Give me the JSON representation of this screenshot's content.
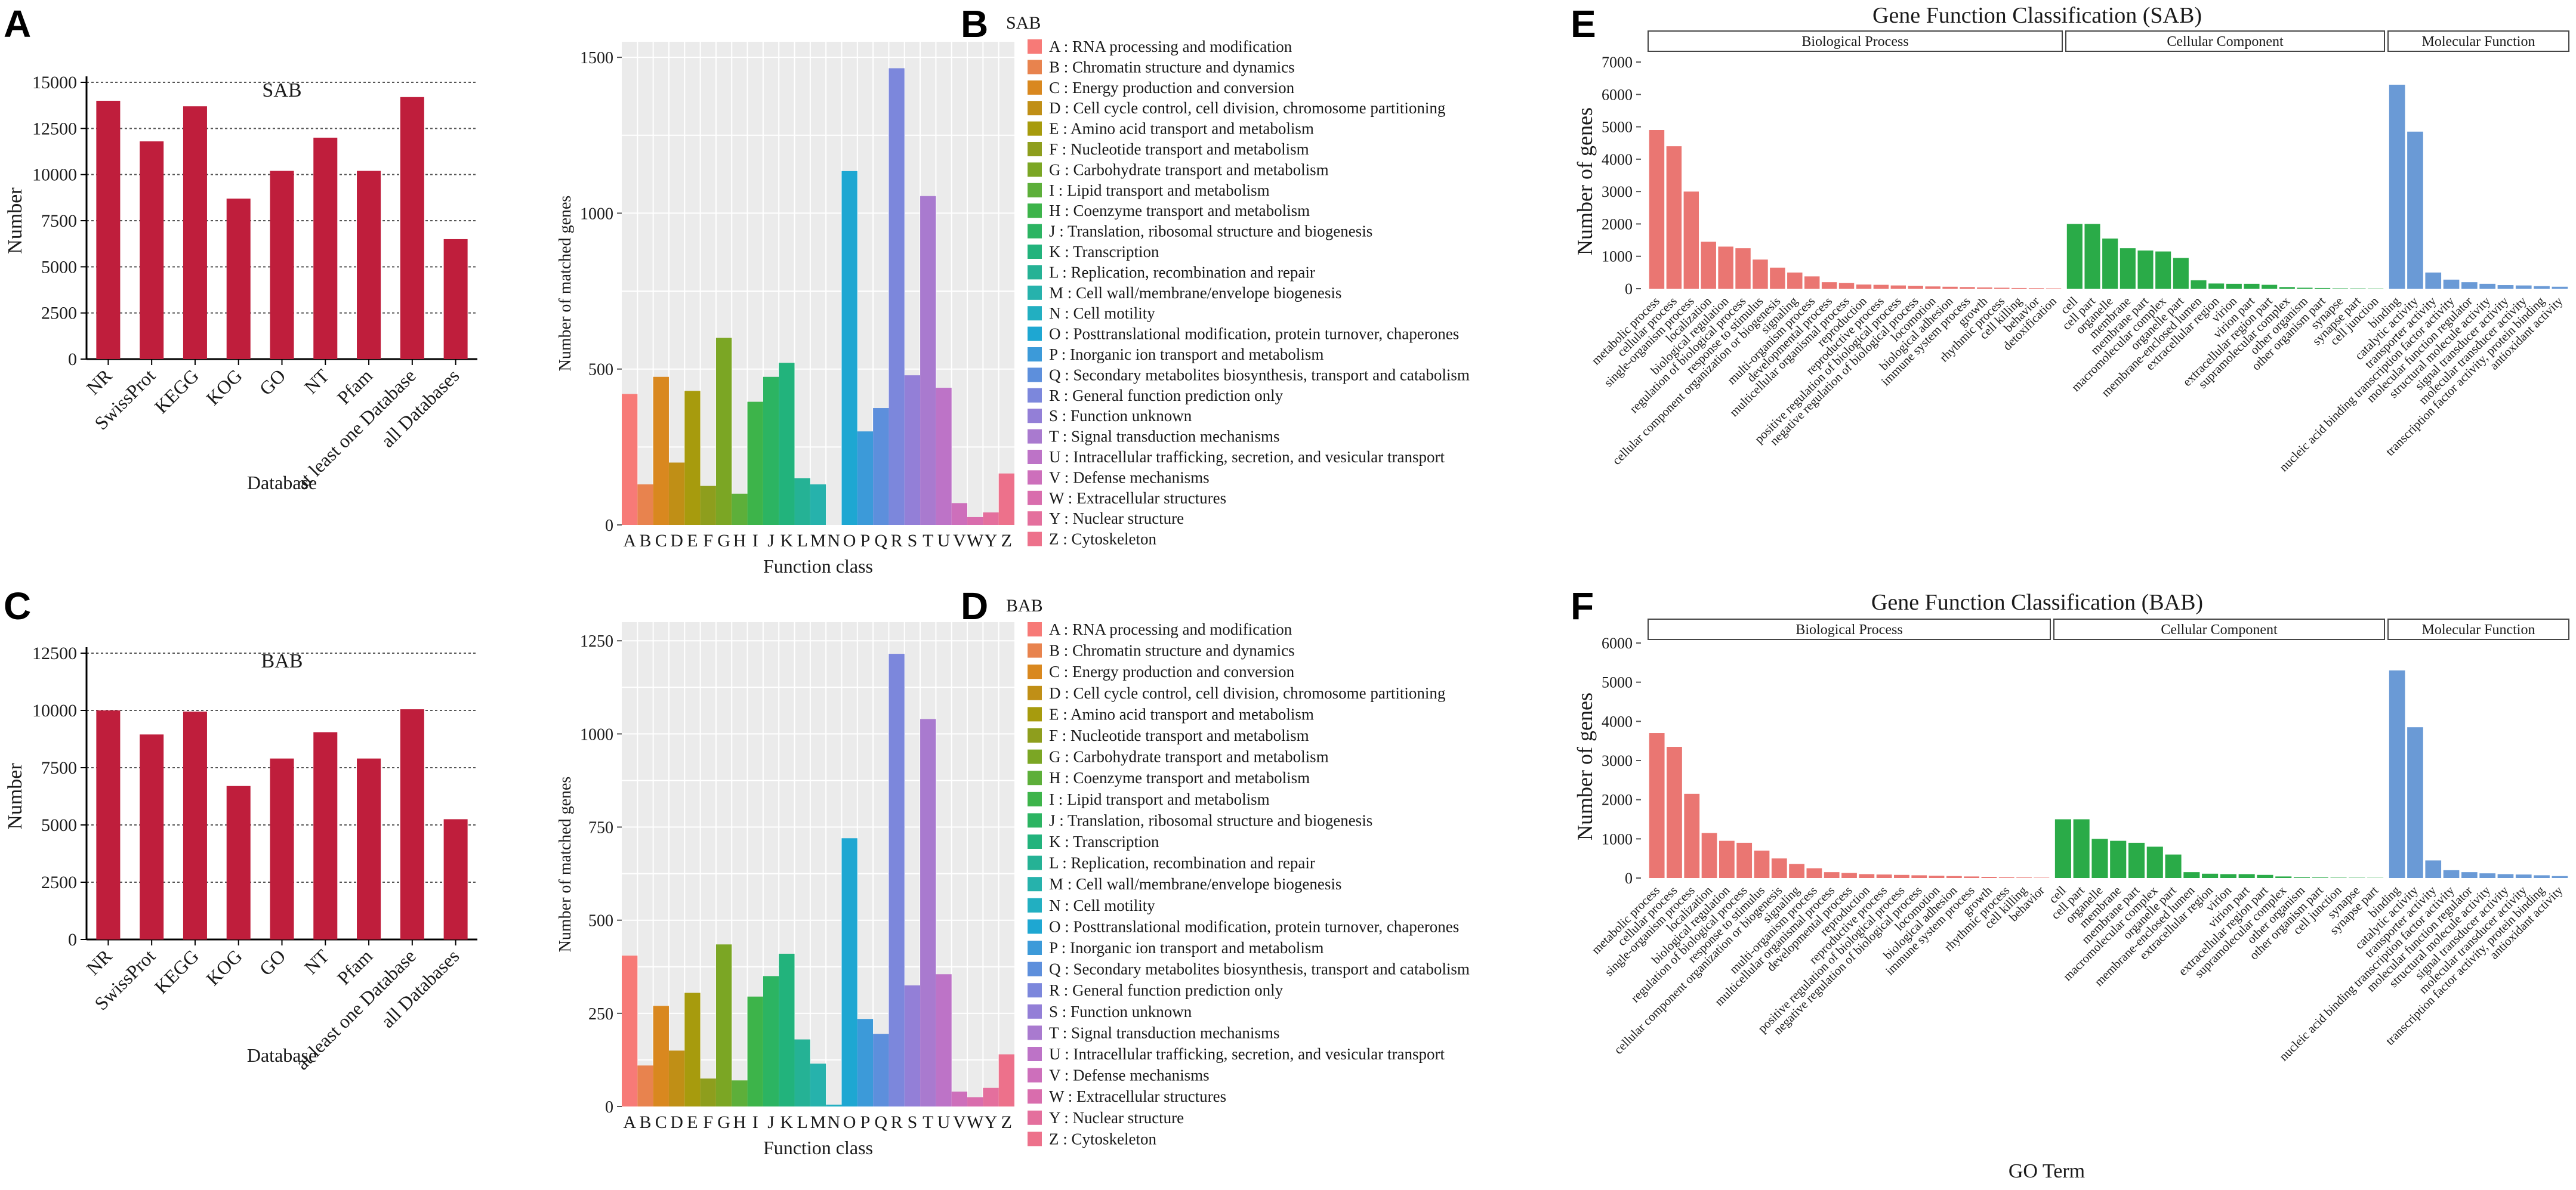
{
  "panel_letters": [
    "A",
    "B",
    "C",
    "D",
    "E",
    "F"
  ],
  "colors": {
    "db_bar": "#bf1e3c",
    "bp": "#ea7672",
    "cc": "#2aab48",
    "mf": "#6a9ad6",
    "kog_bg": "#ebebeb",
    "grid": "#ffffff"
  },
  "chart_data": [
    {
      "id": "A",
      "type": "bar",
      "title": "SAB",
      "xlabel": "Database",
      "ylabel": "Number",
      "ylim": [
        0,
        15000
      ],
      "yticks": [
        0,
        2500,
        5000,
        7500,
        10000,
        12500,
        15000
      ],
      "categories": [
        "NR",
        "SwissProt",
        "KEGG",
        "KOG",
        "GO",
        "NT",
        "Pfam",
        "at least one Database",
        "all Databases"
      ],
      "values": [
        14000,
        11800,
        13700,
        8700,
        10200,
        12000,
        10200,
        14200,
        6500
      ]
    },
    {
      "id": "C",
      "type": "bar",
      "title": "BAB",
      "xlabel": "Database",
      "ylabel": "Number",
      "ylim": [
        0,
        12500
      ],
      "yticks": [
        0,
        2500,
        5000,
        7500,
        10000,
        12500
      ],
      "categories": [
        "NR",
        "SwissProt",
        "KEGG",
        "KOG",
        "GO",
        "NT",
        "Pfam",
        "at least one Database",
        "all Databases"
      ],
      "values": [
        10000,
        8950,
        9950,
        6700,
        7900,
        9050,
        7900,
        10050,
        5250
      ]
    },
    {
      "id": "B",
      "type": "bar",
      "title": "SAB",
      "xlabel": "Function class",
      "ylabel": "Number of matched genes",
      "ylim": [
        0,
        1550
      ],
      "yticks": [
        0,
        500,
        1000,
        1500
      ],
      "categories": [
        "A",
        "B",
        "C",
        "D",
        "E",
        "F",
        "G",
        "H",
        "I",
        "J",
        "K",
        "L",
        "M",
        "N",
        "O",
        "P",
        "Q",
        "R",
        "S",
        "T",
        "U",
        "V",
        "W",
        "Y",
        "Z"
      ],
      "values": [
        420,
        130,
        475,
        200,
        430,
        125,
        600,
        100,
        395,
        475,
        520,
        150,
        130,
        0,
        1135,
        300,
        375,
        1465,
        480,
        1055,
        440,
        70,
        25,
        40,
        165
      ],
      "bar_colors": [
        "#f77a77",
        "#e8834e",
        "#d9881f",
        "#c08f16",
        "#a79b0d",
        "#8e9e1d",
        "#7ba624",
        "#5daf3a",
        "#3db44a",
        "#2cb462",
        "#22b37c",
        "#25b295",
        "#26b2ac",
        "#22afc1",
        "#1ea7d2",
        "#3c9ad9",
        "#5d8fdc",
        "#7c87dc",
        "#937fd7",
        "#a97acf",
        "#bd73c7",
        "#cd6fbb",
        "#d96dad",
        "#e46f9d",
        "#ed718b"
      ],
      "legend": [
        "A : RNA processing and modification",
        "B : Chromatin structure and dynamics",
        "C : Energy production and conversion",
        "D : Cell cycle control, cell division, chromosome partitioning",
        "E : Amino acid transport and metabolism",
        "F : Nucleotide transport and metabolism",
        "G : Carbohydrate transport and metabolism",
        "I : Lipid transport and metabolism",
        "H : Coenzyme transport and metabolism",
        "J : Translation, ribosomal structure and biogenesis",
        "K : Transcription",
        "L : Replication, recombination and repair",
        "M : Cell wall/membrane/envelope biogenesis",
        "N : Cell motility",
        "O : Posttranslational modification, protein turnover, chaperones",
        "P : Inorganic ion transport and metabolism",
        "Q : Secondary metabolites biosynthesis, transport and catabolism",
        "R : General function prediction only",
        "S : Function unknown",
        "T : Signal transduction mechanisms",
        "U : Intracellular trafficking, secretion, and vesicular transport",
        "V : Defense mechanisms",
        "W : Extracellular structures",
        "Y : Nuclear structure",
        "Z : Cytoskeleton"
      ]
    },
    {
      "id": "D",
      "type": "bar",
      "title": "BAB",
      "xlabel": "Function class",
      "ylabel": "Number of matched genes",
      "ylim": [
        0,
        1300
      ],
      "yticks": [
        0,
        250,
        500,
        750,
        1000,
        1250
      ],
      "categories": [
        "A",
        "B",
        "C",
        "D",
        "E",
        "F",
        "G",
        "H",
        "I",
        "J",
        "K",
        "L",
        "M",
        "N",
        "O",
        "P",
        "Q",
        "R",
        "S",
        "T",
        "U",
        "V",
        "W",
        "Y",
        "Z"
      ],
      "values": [
        405,
        110,
        270,
        150,
        305,
        75,
        435,
        70,
        295,
        350,
        410,
        180,
        115,
        5,
        720,
        235,
        195,
        1215,
        325,
        1040,
        355,
        40,
        25,
        50,
        140
      ],
      "bar_colors": [
        "#f77a77",
        "#e8834e",
        "#d9881f",
        "#c08f16",
        "#a79b0d",
        "#8e9e1d",
        "#7ba624",
        "#5daf3a",
        "#3db44a",
        "#2cb462",
        "#22b37c",
        "#25b295",
        "#26b2ac",
        "#22afc1",
        "#1ea7d2",
        "#3c9ad9",
        "#5d8fdc",
        "#7c87dc",
        "#937fd7",
        "#a97acf",
        "#bd73c7",
        "#cd6fbb",
        "#d96dad",
        "#e46f9d",
        "#ed718b"
      ],
      "legend": [
        "A : RNA processing and modification",
        "B : Chromatin structure and dynamics",
        "C : Energy production and conversion",
        "D : Cell cycle control, cell division, chromosome partitioning",
        "E : Amino acid transport and metabolism",
        "F : Nucleotide transport and metabolism",
        "G : Carbohydrate transport and metabolism",
        "H : Coenzyme transport and metabolism",
        "I : Lipid transport and metabolism",
        "J : Translation, ribosomal structure and biogenesis",
        "K : Transcription",
        "L : Replication, recombination and repair",
        "M : Cell wall/membrane/envelope biogenesis",
        "N : Cell motility",
        "O : Posttranslational modification, protein turnover, chaperones",
        "P : Inorganic ion transport and metabolism",
        "Q : Secondary metabolites biosynthesis, transport and catabolism",
        "R : General function prediction only",
        "S : Function unknown",
        "T : Signal transduction mechanisms",
        "U : Intracellular trafficking, secretion, and vesicular transport",
        "V : Defense mechanisms",
        "W : Extracellular structures",
        "Y : Nuclear structure",
        "Z : Cytoskeleton"
      ]
    },
    {
      "id": "E",
      "type": "bar",
      "title": "Gene Function Classification (SAB)",
      "xlabel": "",
      "ylabel": "Number of genes",
      "ylim": [
        0,
        7000
      ],
      "yticks": [
        0,
        1000,
        2000,
        3000,
        4000,
        5000,
        6000,
        7000
      ],
      "groups": [
        {
          "name": "Biological Process",
          "categories": [
            "metabolic process",
            "cellular process",
            "single-organism process",
            "localization",
            "biological regulation",
            "regulation of biological process",
            "response to stimulus",
            "cellular component organization or biogenesis",
            "signaling",
            "multi-organism process",
            "developmental process",
            "multicellular organismal process",
            "reproduction",
            "reproductive process",
            "positive regulation of biological process",
            "negative regulation of biological process",
            "locomotion",
            "biological adhesion",
            "immune system process",
            "growth",
            "rhythmic process",
            "cell killing",
            "behavior",
            "detoxification"
          ],
          "values": [
            4900,
            4400,
            3000,
            1450,
            1300,
            1250,
            900,
            650,
            500,
            380,
            200,
            180,
            130,
            120,
            100,
            90,
            70,
            60,
            50,
            40,
            30,
            20,
            15,
            10
          ]
        },
        {
          "name": "Cellular Component",
          "categories": [
            "cell",
            "cell part",
            "organelle",
            "membrane",
            "membrane part",
            "macromolecular complex",
            "organelle part",
            "membrane-enclosed lumen",
            "extracellular region",
            "virion",
            "virion part",
            "extracellular region part",
            "supramolecular complex",
            "other organism",
            "other organism part",
            "synapse",
            "synapse part",
            "cell junction"
          ],
          "values": [
            2000,
            2000,
            1550,
            1250,
            1180,
            1150,
            950,
            260,
            160,
            150,
            150,
            120,
            50,
            30,
            20,
            10,
            8,
            6
          ]
        },
        {
          "name": "Molecular Function",
          "categories": [
            "binding",
            "catalytic activity",
            "transporter activity",
            "nucleic acid binding transcription factor activity",
            "molecular function regulator",
            "structural molecule activity",
            "signal transducer activity",
            "molecular transducer activity",
            "transcription factor activity, protein binding",
            "antioxidant activity"
          ],
          "values": [
            6300,
            4850,
            500,
            280,
            200,
            150,
            110,
            100,
            80,
            60
          ]
        }
      ]
    },
    {
      "id": "F",
      "type": "bar",
      "title": "Gene Function Classification (BAB)",
      "xlabel": "GO Term",
      "ylabel": "Number of genes",
      "ylim": [
        0,
        6000
      ],
      "yticks": [
        0,
        1000,
        2000,
        3000,
        4000,
        5000,
        6000
      ],
      "groups": [
        {
          "name": "Biological Process",
          "categories": [
            "metabolic process",
            "cellular process",
            "single-organism process",
            "localization",
            "biological regulation",
            "regulation of biological process",
            "response to stimulus",
            "cellular component organization or biogenesis",
            "signaling",
            "multi-organism process",
            "multicellular organismal process",
            "developmental process",
            "reproduction",
            "reproductive process",
            "positive regulation of biological process",
            "negative regulation of biological process",
            "locomotion",
            "biological adhesion",
            "immune system process",
            "growth",
            "rhythmic process",
            "cell killing",
            "behavior"
          ],
          "values": [
            3700,
            3350,
            2150,
            1150,
            950,
            900,
            700,
            500,
            360,
            250,
            150,
            130,
            100,
            90,
            80,
            70,
            60,
            50,
            40,
            30,
            20,
            15,
            10
          ]
        },
        {
          "name": "Cellular Component",
          "categories": [
            "cell",
            "cell part",
            "organelle",
            "membrane",
            "membrane part",
            "macromolecular complex",
            "organelle part",
            "membrane-enclosed lumen",
            "extracellular region",
            "virion",
            "virion part",
            "extracellular region part",
            "supramolecular complex",
            "other organism",
            "other organism part",
            "cell junction",
            "synapse",
            "synapse part"
          ],
          "values": [
            1500,
            1500,
            1000,
            950,
            900,
            800,
            600,
            150,
            110,
            100,
            100,
            80,
            40,
            20,
            15,
            10,
            8,
            6
          ]
        },
        {
          "name": "Molecular Function",
          "categories": [
            "binding",
            "catalytic activity",
            "transporter activity",
            "nucleic acid binding transcription factor activity",
            "molecular function regulator",
            "structural molecule activity",
            "signal transducer activity",
            "molecular transducer activity",
            "transcription factor activity, protein binding",
            "antioxidant activity"
          ],
          "values": [
            5300,
            3850,
            450,
            200,
            150,
            120,
            100,
            90,
            70,
            50
          ]
        }
      ]
    }
  ]
}
